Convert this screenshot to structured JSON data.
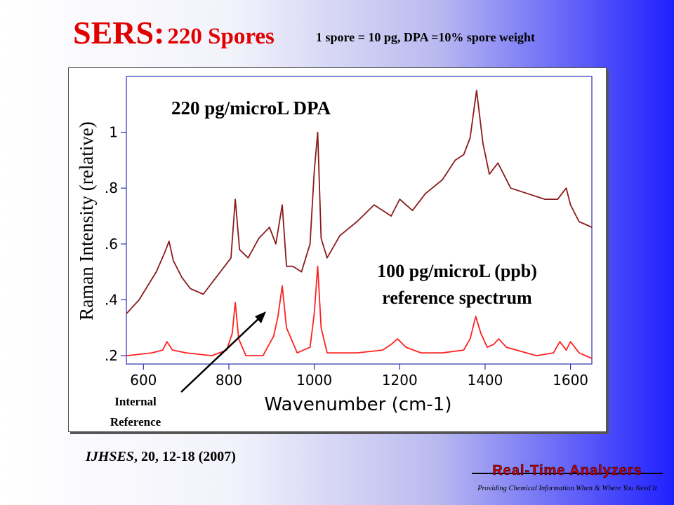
{
  "slide": {
    "title_main": "SERS:",
    "title_sub": "220 Spores",
    "subtitle": "1 spore = 10 pg, DPA =10% spore weight",
    "citation_journal": "IJHSES",
    "citation_rest": ", 20, 12-18 (2007)",
    "logo_text": "Real-Time Analyzers",
    "logo_tagline": "Providing Chemical Information When & Where You Need It"
  },
  "chart_data": {
    "type": "line",
    "xlabel": "Wavenumber (cm-1)",
    "ylabel": "Raman Intensity (relative)",
    "xlim": [
      560,
      1650
    ],
    "ylim": [
      0.17,
      1.2
    ],
    "x_ticks": [
      600,
      800,
      1000,
      1200,
      1400,
      1600
    ],
    "y_ticks": [
      0.2,
      0.4,
      0.6,
      0.8,
      1.0
    ],
    "y_tick_labels": [
      ".2",
      ".4",
      ".6",
      ".8",
      "1"
    ],
    "annotations": [
      {
        "text": "220 pg/microL DPA"
      },
      {
        "text": "100 pg/microL (ppb)",
        "text2": "reference spectrum"
      },
      {
        "text": "Internal",
        "text2": "Reference"
      }
    ],
    "series": [
      {
        "color": "#8b1a1a",
        "x": [
          560,
          590,
          610,
          630,
          650,
          660,
          670,
          690,
          710,
          740,
          770,
          790,
          805,
          815,
          825,
          845,
          870,
          895,
          910,
          925,
          935,
          950,
          970,
          990,
          1000,
          1008,
          1016,
          1030,
          1060,
          1100,
          1140,
          1180,
          1200,
          1230,
          1260,
          1300,
          1330,
          1350,
          1365,
          1380,
          1395,
          1410,
          1430,
          1460,
          1500,
          1540,
          1570,
          1590,
          1600,
          1620,
          1650
        ],
        "y": [
          0.35,
          0.4,
          0.45,
          0.5,
          0.57,
          0.61,
          0.54,
          0.48,
          0.44,
          0.42,
          0.48,
          0.52,
          0.55,
          0.76,
          0.58,
          0.55,
          0.62,
          0.66,
          0.6,
          0.74,
          0.52,
          0.52,
          0.5,
          0.6,
          0.86,
          1.0,
          0.62,
          0.55,
          0.63,
          0.68,
          0.74,
          0.7,
          0.76,
          0.72,
          0.78,
          0.83,
          0.9,
          0.92,
          0.98,
          1.15,
          0.96,
          0.85,
          0.89,
          0.8,
          0.78,
          0.76,
          0.76,
          0.8,
          0.74,
          0.68,
          0.66
        ]
      },
      {
        "color": "#ff2020",
        "x": [
          560,
          620,
          645,
          655,
          668,
          700,
          760,
          795,
          808,
          815,
          823,
          840,
          880,
          905,
          915,
          925,
          935,
          960,
          990,
          1000,
          1008,
          1016,
          1030,
          1100,
          1160,
          1180,
          1195,
          1215,
          1250,
          1300,
          1350,
          1365,
          1378,
          1390,
          1405,
          1420,
          1432,
          1450,
          1520,
          1560,
          1575,
          1590,
          1600,
          1620,
          1650
        ],
        "y": [
          0.2,
          0.21,
          0.22,
          0.25,
          0.22,
          0.21,
          0.2,
          0.22,
          0.28,
          0.39,
          0.26,
          0.2,
          0.2,
          0.27,
          0.34,
          0.45,
          0.3,
          0.21,
          0.23,
          0.35,
          0.52,
          0.3,
          0.21,
          0.21,
          0.22,
          0.24,
          0.26,
          0.23,
          0.21,
          0.21,
          0.22,
          0.26,
          0.34,
          0.28,
          0.23,
          0.24,
          0.26,
          0.23,
          0.2,
          0.21,
          0.25,
          0.22,
          0.25,
          0.21,
          0.19
        ]
      }
    ]
  }
}
